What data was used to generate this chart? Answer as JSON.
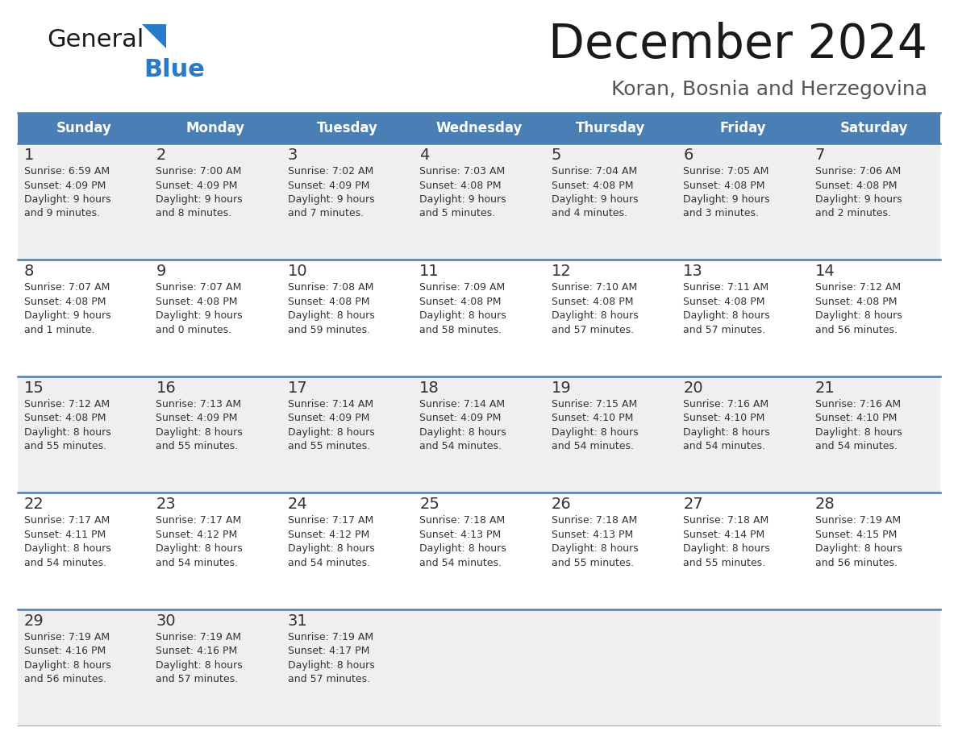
{
  "title": "December 2024",
  "subtitle": "Koran, Bosnia and Herzegovina",
  "header_color": "#4a7fb5",
  "header_text_color": "#ffffff",
  "background_color": "#ffffff",
  "cell_bg_light": "#efefef",
  "cell_bg_white": "#ffffff",
  "divider_color": "#4a7fb5",
  "days_of_week": [
    "Sunday",
    "Monday",
    "Tuesday",
    "Wednesday",
    "Thursday",
    "Friday",
    "Saturday"
  ],
  "logo_color_text": "#1a1a1a",
  "logo_color_blue": "#2a7acc",
  "title_color": "#1a1a1a",
  "subtitle_color": "#555555",
  "cell_text_color": "#333333",
  "weeks": [
    [
      {
        "day": "1",
        "sunrise": "6:59 AM",
        "sunset": "4:09 PM",
        "daylight_h": "9 hours",
        "daylight_m": "and 9 minutes."
      },
      {
        "day": "2",
        "sunrise": "7:00 AM",
        "sunset": "4:09 PM",
        "daylight_h": "9 hours",
        "daylight_m": "and 8 minutes."
      },
      {
        "day": "3",
        "sunrise": "7:02 AM",
        "sunset": "4:09 PM",
        "daylight_h": "9 hours",
        "daylight_m": "and 7 minutes."
      },
      {
        "day": "4",
        "sunrise": "7:03 AM",
        "sunset": "4:08 PM",
        "daylight_h": "9 hours",
        "daylight_m": "and 5 minutes."
      },
      {
        "day": "5",
        "sunrise": "7:04 AM",
        "sunset": "4:08 PM",
        "daylight_h": "9 hours",
        "daylight_m": "and 4 minutes."
      },
      {
        "day": "6",
        "sunrise": "7:05 AM",
        "sunset": "4:08 PM",
        "daylight_h": "9 hours",
        "daylight_m": "and 3 minutes."
      },
      {
        "day": "7",
        "sunrise": "7:06 AM",
        "sunset": "4:08 PM",
        "daylight_h": "9 hours",
        "daylight_m": "and 2 minutes."
      }
    ],
    [
      {
        "day": "8",
        "sunrise": "7:07 AM",
        "sunset": "4:08 PM",
        "daylight_h": "9 hours",
        "daylight_m": "and 1 minute."
      },
      {
        "day": "9",
        "sunrise": "7:07 AM",
        "sunset": "4:08 PM",
        "daylight_h": "9 hours",
        "daylight_m": "and 0 minutes."
      },
      {
        "day": "10",
        "sunrise": "7:08 AM",
        "sunset": "4:08 PM",
        "daylight_h": "8 hours",
        "daylight_m": "and 59 minutes."
      },
      {
        "day": "11",
        "sunrise": "7:09 AM",
        "sunset": "4:08 PM",
        "daylight_h": "8 hours",
        "daylight_m": "and 58 minutes."
      },
      {
        "day": "12",
        "sunrise": "7:10 AM",
        "sunset": "4:08 PM",
        "daylight_h": "8 hours",
        "daylight_m": "and 57 minutes."
      },
      {
        "day": "13",
        "sunrise": "7:11 AM",
        "sunset": "4:08 PM",
        "daylight_h": "8 hours",
        "daylight_m": "and 57 minutes."
      },
      {
        "day": "14",
        "sunrise": "7:12 AM",
        "sunset": "4:08 PM",
        "daylight_h": "8 hours",
        "daylight_m": "and 56 minutes."
      }
    ],
    [
      {
        "day": "15",
        "sunrise": "7:12 AM",
        "sunset": "4:08 PM",
        "daylight_h": "8 hours",
        "daylight_m": "and 55 minutes."
      },
      {
        "day": "16",
        "sunrise": "7:13 AM",
        "sunset": "4:09 PM",
        "daylight_h": "8 hours",
        "daylight_m": "and 55 minutes."
      },
      {
        "day": "17",
        "sunrise": "7:14 AM",
        "sunset": "4:09 PM",
        "daylight_h": "8 hours",
        "daylight_m": "and 55 minutes."
      },
      {
        "day": "18",
        "sunrise": "7:14 AM",
        "sunset": "4:09 PM",
        "daylight_h": "8 hours",
        "daylight_m": "and 54 minutes."
      },
      {
        "day": "19",
        "sunrise": "7:15 AM",
        "sunset": "4:10 PM",
        "daylight_h": "8 hours",
        "daylight_m": "and 54 minutes."
      },
      {
        "day": "20",
        "sunrise": "7:16 AM",
        "sunset": "4:10 PM",
        "daylight_h": "8 hours",
        "daylight_m": "and 54 minutes."
      },
      {
        "day": "21",
        "sunrise": "7:16 AM",
        "sunset": "4:10 PM",
        "daylight_h": "8 hours",
        "daylight_m": "and 54 minutes."
      }
    ],
    [
      {
        "day": "22",
        "sunrise": "7:17 AM",
        "sunset": "4:11 PM",
        "daylight_h": "8 hours",
        "daylight_m": "and 54 minutes."
      },
      {
        "day": "23",
        "sunrise": "7:17 AM",
        "sunset": "4:12 PM",
        "daylight_h": "8 hours",
        "daylight_m": "and 54 minutes."
      },
      {
        "day": "24",
        "sunrise": "7:17 AM",
        "sunset": "4:12 PM",
        "daylight_h": "8 hours",
        "daylight_m": "and 54 minutes."
      },
      {
        "day": "25",
        "sunrise": "7:18 AM",
        "sunset": "4:13 PM",
        "daylight_h": "8 hours",
        "daylight_m": "and 54 minutes."
      },
      {
        "day": "26",
        "sunrise": "7:18 AM",
        "sunset": "4:13 PM",
        "daylight_h": "8 hours",
        "daylight_m": "and 55 minutes."
      },
      {
        "day": "27",
        "sunrise": "7:18 AM",
        "sunset": "4:14 PM",
        "daylight_h": "8 hours",
        "daylight_m": "and 55 minutes."
      },
      {
        "day": "28",
        "sunrise": "7:19 AM",
        "sunset": "4:15 PM",
        "daylight_h": "8 hours",
        "daylight_m": "and 56 minutes."
      }
    ],
    [
      {
        "day": "29",
        "sunrise": "7:19 AM",
        "sunset": "4:16 PM",
        "daylight_h": "8 hours",
        "daylight_m": "and 56 minutes."
      },
      {
        "day": "30",
        "sunrise": "7:19 AM",
        "sunset": "4:16 PM",
        "daylight_h": "8 hours",
        "daylight_m": "and 57 minutes."
      },
      {
        "day": "31",
        "sunrise": "7:19 AM",
        "sunset": "4:17 PM",
        "daylight_h": "8 hours",
        "daylight_m": "and 57 minutes."
      },
      null,
      null,
      null,
      null
    ]
  ]
}
